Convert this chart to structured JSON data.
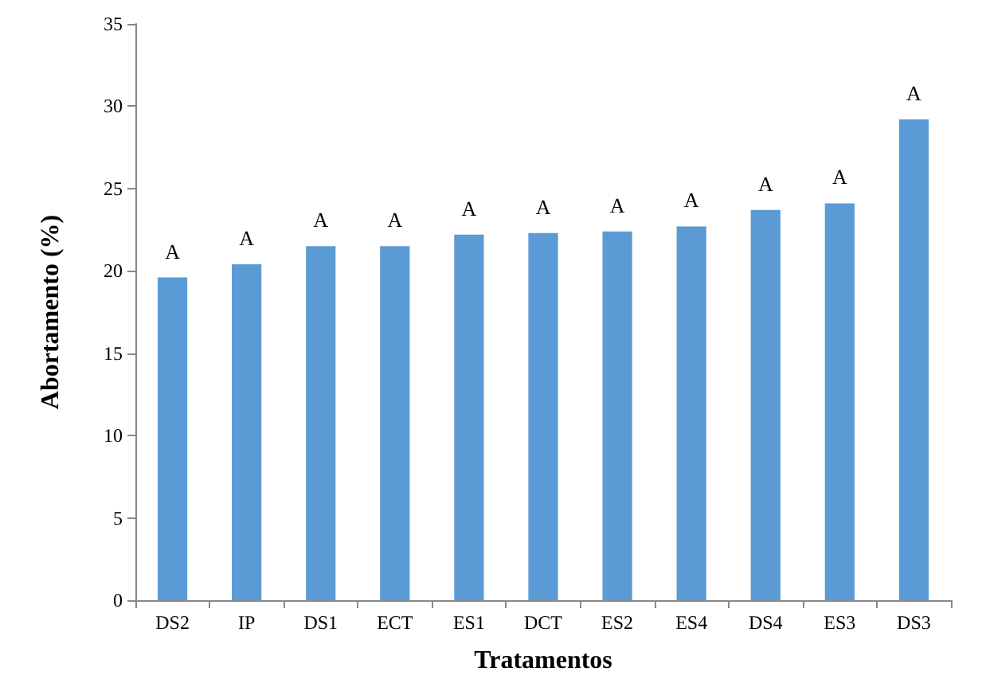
{
  "chart_data": {
    "type": "bar",
    "xlabel": "Tratamentos",
    "ylabel": "Abortamento (%)",
    "categories": [
      "DS2",
      "IP",
      "DS1",
      "ECT",
      "ES1",
      "DCT",
      "ES2",
      "ES4",
      "DS4",
      "ES3",
      "DS3"
    ],
    "values": [
      19.6,
      20.4,
      21.5,
      21.5,
      22.2,
      22.3,
      22.4,
      22.7,
      23.7,
      24.1,
      29.2
    ],
    "value_labels": [
      "A",
      "A",
      "A",
      "A",
      "A",
      "A",
      "A",
      "A",
      "A",
      "A",
      "A"
    ],
    "color": "#5b9bd5",
    "ylim": [
      0,
      35
    ],
    "yticks": [
      0,
      5,
      10,
      15,
      20,
      25,
      30,
      35
    ],
    "grid": false
  }
}
